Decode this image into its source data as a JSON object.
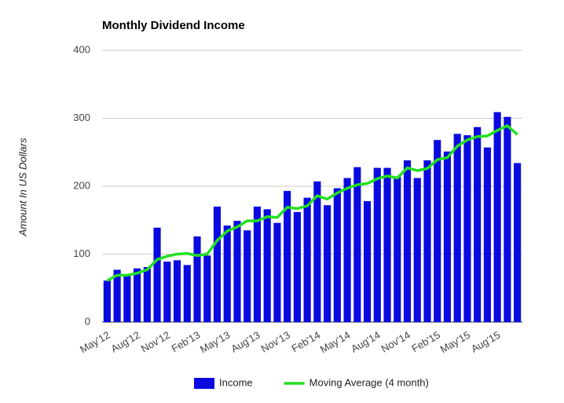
{
  "chart_data": {
    "type": "bar_line",
    "title": "Monthly Dividend Income",
    "y_label": "Amount In US Dollars",
    "categories": [
      "May'12",
      null,
      null,
      "Aug'12",
      null,
      null,
      "Nov'12",
      null,
      null,
      "Feb'13",
      null,
      null,
      "May'13",
      null,
      null,
      "Aug'13",
      null,
      null,
      "Nov'13",
      null,
      null,
      "Feb'14",
      null,
      null,
      "May'14",
      null,
      null,
      "Aug'14",
      null,
      null,
      "Nov'14",
      null,
      null,
      "Feb'15",
      null,
      null,
      "May'15",
      null,
      null,
      "Aug'15",
      null,
      null
    ],
    "series": [
      {
        "name": "Income",
        "kind": "bar",
        "color": "#0a0ae0",
        "values": [
          61,
          77,
          70,
          79,
          81,
          139,
          89,
          91,
          84,
          126,
          98,
          170,
          142,
          149,
          135,
          170,
          166,
          146,
          193,
          162,
          183,
          207,
          172,
          197,
          212,
          228,
          178,
          227,
          227,
          214,
          238,
          212,
          238,
          268,
          251,
          277,
          275,
          287,
          257,
          309,
          302,
          234
        ]
      },
      {
        "name": "Moving Average (4 month)",
        "kind": "line",
        "color": "#22e022",
        "values": [
          61,
          69,
          69,
          72,
          77,
          92,
          97,
          100,
          101,
          98,
          100,
          120,
          134,
          140,
          149,
          149,
          155,
          154,
          169,
          167,
          171,
          186,
          181,
          190,
          197,
          202,
          204,
          211,
          215,
          212,
          227,
          223,
          226,
          239,
          242,
          259,
          268,
          273,
          274,
          282,
          289,
          276
        ]
      }
    ],
    "ylim": [
      0,
      400
    ],
    "yticks": [
      0,
      100,
      200,
      300,
      400
    ],
    "grid": true
  }
}
